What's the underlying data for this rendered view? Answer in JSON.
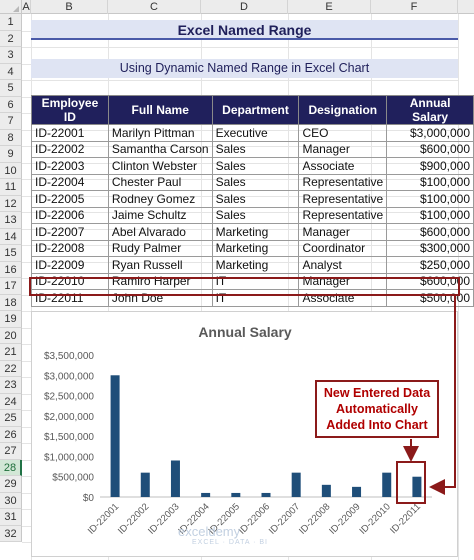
{
  "columns": [
    "A",
    "B",
    "C",
    "D",
    "E",
    "F"
  ],
  "rows": [
    "1",
    "2",
    "3",
    "4",
    "5",
    "6",
    "7",
    "8",
    "9",
    "10",
    "11",
    "12",
    "13",
    "14",
    "15",
    "16",
    "17",
    "18",
    "19",
    "20",
    "21",
    "22",
    "23",
    "24",
    "25",
    "26",
    "27",
    "28",
    "29",
    "30",
    "31",
    "32"
  ],
  "active_row": "28",
  "title": "Excel Named Range",
  "subtitle": "Using Dynamic Named Range in Excel Chart",
  "table": {
    "headers": [
      "Employee ID",
      "Full Name",
      "Department",
      "Designation",
      "Annual Salary"
    ],
    "rows": [
      [
        "ID-22001",
        "Marilyn Pittman",
        "Executive",
        "CEO",
        "$3,000,000"
      ],
      [
        "ID-22002",
        "Samantha Carson",
        "Sales",
        "Manager",
        "$600,000"
      ],
      [
        "ID-22003",
        "Clinton Webster",
        "Sales",
        "Associate",
        "$900,000"
      ],
      [
        "ID-22004",
        "Chester Paul",
        "Sales",
        "Representative",
        "$100,000"
      ],
      [
        "ID-22005",
        "Rodney Gomez",
        "Sales",
        "Representative",
        "$100,000"
      ],
      [
        "ID-22006",
        "Jaime Schultz",
        "Sales",
        "Representative",
        "$100,000"
      ],
      [
        "ID-22007",
        "Abel Alvarado",
        "Marketing",
        "Manager",
        "$600,000"
      ],
      [
        "ID-22008",
        "Rudy Palmer",
        "Marketing",
        "Coordinator",
        "$300,000"
      ],
      [
        "ID-22009",
        "Ryan Russell",
        "Marketing",
        "Analyst",
        "$250,000"
      ],
      [
        "ID-22010",
        "Ramiro Harper",
        "IT",
        "Manager",
        "$600,000"
      ],
      [
        "ID-22011",
        "John Doe",
        "IT",
        "Associate",
        "$500,000"
      ]
    ]
  },
  "callout": {
    "line1": "New Entered Data",
    "line2": "Automatically",
    "line3": "Added Into Chart"
  },
  "watermark": {
    "name": "exceldemy",
    "tagline": "EXCEL · DATA · BI"
  },
  "colors": {
    "header_bg": "#20205c",
    "bar": "#1f4e79",
    "accent_red": "#8b1a1a",
    "title_bg": "#dfe4f3"
  },
  "chart_data": {
    "type": "bar",
    "title": "Annual Salary",
    "categories": [
      "ID-22001",
      "ID-22002",
      "ID-22003",
      "ID-22004",
      "ID-22005",
      "ID-22006",
      "ID-22007",
      "ID-22008",
      "ID-22009",
      "ID-22010",
      "ID-22011"
    ],
    "values": [
      3000000,
      600000,
      900000,
      100000,
      100000,
      100000,
      600000,
      300000,
      250000,
      600000,
      500000
    ],
    "yticks": [
      "$0",
      "$500,000",
      "$1,000,000",
      "$1,500,000",
      "$2,000,000",
      "$2,500,000",
      "$3,000,000",
      "$3,500,000"
    ],
    "ylim": [
      0,
      3500000
    ],
    "xlabel": "",
    "ylabel": "",
    "grid": false
  }
}
